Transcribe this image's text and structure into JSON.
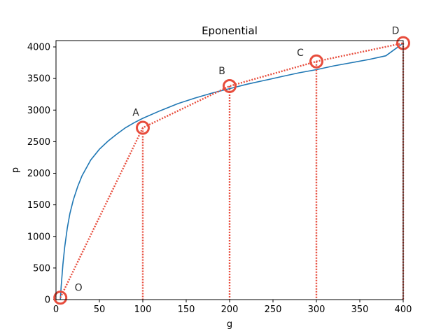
{
  "chart_data": {
    "type": "line",
    "title": "Eponential",
    "xlabel": "g",
    "ylabel": "p",
    "xlim": [
      0,
      400
    ],
    "ylim": [
      0,
      4100
    ],
    "xticks": [
      0,
      50,
      100,
      150,
      200,
      250,
      300,
      350,
      400
    ],
    "yticks": [
      0,
      500,
      1000,
      1500,
      2000,
      2500,
      3000,
      3500,
      4000
    ],
    "grid": false,
    "legend": "none",
    "curve": {
      "color": "#1f77b4",
      "x": [
        5,
        6,
        8,
        10,
        13,
        16,
        20,
        25,
        30,
        40,
        50,
        60,
        70,
        80,
        90,
        100,
        120,
        140,
        160,
        180,
        200,
        220,
        240,
        260,
        280,
        300,
        320,
        340,
        360,
        380,
        400
      ],
      "y": [
        0,
        210,
        560,
        830,
        1130,
        1360,
        1580,
        1790,
        1960,
        2210,
        2380,
        2510,
        2620,
        2720,
        2800,
        2870,
        2990,
        3100,
        3190,
        3270,
        3340,
        3410,
        3470,
        3530,
        3590,
        3640,
        3700,
        3750,
        3800,
        3860,
        4060
      ]
    },
    "path_color": "#e74c3c",
    "points": [
      {
        "label": "O",
        "x": 5,
        "y": 30
      },
      {
        "label": "A",
        "x": 100,
        "y": 2720
      },
      {
        "label": "B",
        "x": 200,
        "y": 3380
      },
      {
        "label": "C",
        "x": 300,
        "y": 3770
      },
      {
        "label": "D",
        "x": 400,
        "y": 4060
      }
    ]
  }
}
